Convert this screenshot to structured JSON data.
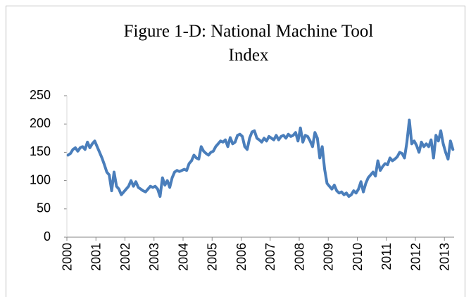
{
  "chart_data": {
    "type": "line",
    "title": "Figure 1-D: National Machine Tool Index",
    "categories": [
      "2000",
      null,
      null,
      null,
      null,
      null,
      null,
      null,
      null,
      null,
      null,
      null,
      "2001",
      null,
      null,
      null,
      null,
      null,
      null,
      null,
      null,
      null,
      null,
      null,
      "2002",
      null,
      null,
      null,
      null,
      null,
      null,
      null,
      null,
      null,
      null,
      null,
      "2003",
      null,
      null,
      null,
      null,
      null,
      null,
      null,
      null,
      null,
      null,
      null,
      "2004",
      null,
      null,
      null,
      null,
      null,
      null,
      null,
      null,
      null,
      null,
      null,
      "2005",
      null,
      null,
      null,
      null,
      null,
      null,
      null,
      null,
      null,
      null,
      null,
      "2006",
      null,
      null,
      null,
      null,
      null,
      null,
      null,
      null,
      null,
      null,
      null,
      "2007",
      null,
      null,
      null,
      null,
      null,
      null,
      null,
      null,
      null,
      null,
      null,
      "2008",
      null,
      null,
      null,
      null,
      null,
      null,
      null,
      null,
      null,
      null,
      null,
      "2009",
      null,
      null,
      null,
      null,
      null,
      null,
      null,
      null,
      null,
      null,
      null,
      "2010",
      null,
      null,
      null,
      null,
      null,
      null,
      null,
      null,
      null,
      null,
      null,
      "2011",
      null,
      null,
      null,
      null,
      null,
      null,
      null,
      null,
      null,
      null,
      null,
      "2012",
      null,
      null,
      null,
      null,
      null,
      null,
      null,
      null,
      null,
      null,
      null,
      "2013",
      null,
      null,
      null
    ],
    "values": [
      145,
      148,
      155,
      158,
      152,
      158,
      160,
      155,
      168,
      158,
      165,
      170,
      160,
      150,
      140,
      128,
      115,
      110,
      82,
      115,
      90,
      85,
      75,
      80,
      85,
      90,
      100,
      90,
      98,
      88,
      85,
      82,
      80,
      85,
      90,
      88,
      90,
      85,
      72,
      105,
      92,
      100,
      88,
      105,
      115,
      118,
      116,
      118,
      120,
      118,
      130,
      135,
      145,
      140,
      138,
      160,
      152,
      148,
      145,
      150,
      152,
      160,
      165,
      170,
      168,
      172,
      160,
      176,
      165,
      168,
      180,
      182,
      178,
      160,
      155,
      175,
      186,
      188,
      175,
      172,
      168,
      175,
      170,
      178,
      175,
      172,
      180,
      172,
      178,
      180,
      175,
      182,
      178,
      180,
      185,
      170,
      193,
      168,
      180,
      178,
      170,
      160,
      185,
      175,
      140,
      160,
      120,
      95,
      90,
      85,
      92,
      82,
      78,
      80,
      75,
      78,
      72,
      75,
      82,
      78,
      85,
      98,
      80,
      95,
      105,
      110,
      115,
      108,
      135,
      118,
      125,
      130,
      128,
      140,
      135,
      138,
      142,
      150,
      148,
      140,
      168,
      207,
      165,
      170,
      162,
      150,
      168,
      160,
      165,
      160,
      172,
      140,
      180,
      170,
      188,
      165,
      150,
      138,
      170,
      155
    ],
    "color": "#4a7ebb",
    "ylim": [
      0,
      250
    ],
    "yticks": [
      0,
      50,
      100,
      150,
      200,
      250
    ]
  }
}
